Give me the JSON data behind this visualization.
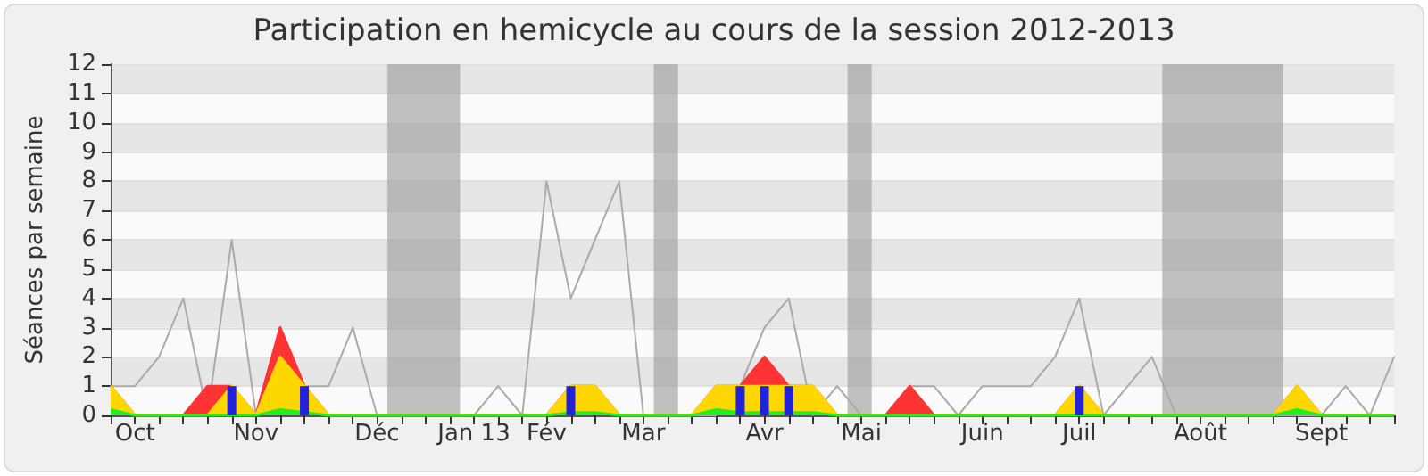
{
  "chart_data": {
    "type": "area",
    "title": "Participation en hemicycle au cours de la session 2012-2013",
    "ylabel": "Séances par semaine",
    "x": [
      "2012-10-01",
      "2012-10-08",
      "2012-10-15",
      "2012-10-22",
      "2012-10-29",
      "2012-11-05",
      "2012-11-12",
      "2012-11-19",
      "2012-11-26",
      "2012-12-03",
      "2012-12-10",
      "2012-12-17",
      "2012-12-24",
      "2012-12-31",
      "2013-01-07",
      "2013-01-14",
      "2013-01-21",
      "2013-01-28",
      "2013-02-04",
      "2013-02-11",
      "2013-02-18",
      "2013-02-25",
      "2013-03-04",
      "2013-03-11",
      "2013-03-18",
      "2013-03-25",
      "2013-04-01",
      "2013-04-08",
      "2013-04-15",
      "2013-04-22",
      "2013-04-29",
      "2013-05-06",
      "2013-05-13",
      "2013-05-20",
      "2013-05-27",
      "2013-06-03",
      "2013-06-10",
      "2013-06-17",
      "2013-06-24",
      "2013-07-01",
      "2013-07-08",
      "2013-07-15",
      "2013-07-22",
      "2013-07-29",
      "2013-08-05",
      "2013-08-12",
      "2013-08-19",
      "2013-08-26",
      "2013-09-02",
      "2013-09-09",
      "2013-09-16",
      "2013-09-23",
      "2013-09-30",
      "2013-10-07"
    ],
    "series": [
      {
        "type": "line",
        "color": "#aaaaaa",
        "values": [
          1,
          1,
          2,
          4,
          0,
          6,
          0,
          null,
          1,
          1,
          3,
          0,
          0,
          0,
          0,
          0,
          1,
          0,
          8,
          4,
          6,
          8,
          0,
          0,
          0,
          0,
          1,
          3,
          4,
          0,
          1,
          0,
          0,
          1,
          1,
          0,
          1,
          1,
          1,
          2,
          4,
          0,
          1,
          2,
          0,
          0,
          0,
          0,
          0,
          0,
          0,
          1,
          0,
          2
        ]
      },
      {
        "color": "#ff3333",
        "values": [
          1,
          0,
          0,
          0,
          1,
          1,
          0,
          3,
          1,
          0,
          0,
          0,
          0,
          0,
          0,
          0,
          0,
          0,
          0,
          1,
          1,
          0,
          0,
          0,
          0,
          1,
          1,
          2,
          1,
          1,
          0,
          0,
          0,
          1,
          0,
          0,
          0,
          0,
          0,
          0,
          1,
          0,
          0,
          0,
          0,
          0,
          0,
          0,
          0,
          1,
          0,
          0,
          0,
          0
        ]
      },
      {
        "color": "#ffd700",
        "values": [
          1,
          0,
          0,
          0,
          0,
          1,
          0,
          2,
          1,
          0,
          0,
          0,
          0,
          0,
          0,
          0,
          0,
          0,
          0,
          1,
          1,
          0,
          0,
          0,
          0,
          1,
          1,
          1,
          1,
          1,
          0,
          0,
          0,
          0,
          0,
          0,
          0,
          0,
          0,
          0,
          1,
          0,
          0,
          0,
          0,
          0,
          0,
          0,
          0,
          1,
          0,
          0,
          0,
          0
        ]
      },
      {
        "color": "#22ee22",
        "values": [
          0.2,
          0,
          0,
          0,
          0,
          0,
          0,
          0.2,
          0.1,
          0,
          0,
          0,
          0,
          0,
          0,
          0,
          0,
          0,
          0,
          0.1,
          0.1,
          0,
          0,
          0,
          0,
          0.2,
          0.1,
          0.1,
          0.1,
          0.1,
          0,
          0,
          0,
          0,
          0,
          0,
          0,
          0,
          0,
          0,
          0,
          0,
          0,
          0,
          0,
          0,
          0,
          0,
          0,
          0.2,
          0,
          0,
          0,
          0
        ]
      },
      {
        "type": "bar",
        "color": "#2222dd",
        "values": [
          null,
          null,
          null,
          null,
          null,
          1,
          null,
          null,
          1,
          null,
          null,
          null,
          null,
          null,
          null,
          null,
          null,
          null,
          null,
          1,
          null,
          null,
          null,
          null,
          null,
          null,
          1,
          1,
          1,
          null,
          null,
          null,
          null,
          null,
          null,
          null,
          null,
          null,
          null,
          null,
          1,
          null,
          null,
          null,
          null,
          null,
          null,
          null,
          null,
          null,
          null,
          null,
          null,
          null
        ]
      }
    ],
    "xlim": [
      "2012-10-01",
      "2013-10-07"
    ],
    "xticks": [
      {
        "value": "2012-10-01",
        "label": null
      },
      {
        "value": "2012-10-08",
        "label": "Oct"
      },
      {
        "value": "2012-10-15",
        "label": null
      },
      {
        "value": "2012-10-22",
        "label": null
      },
      {
        "value": "2012-10-29",
        "label": null
      },
      {
        "value": "2012-11-05",
        "label": null
      },
      {
        "value": "2012-11-12",
        "label": "Nov"
      },
      {
        "value": "2012-11-19",
        "label": null
      },
      {
        "value": "2012-11-26",
        "label": null
      },
      {
        "value": "2012-12-03",
        "label": null
      },
      {
        "value": "2012-12-10",
        "label": null
      },
      {
        "value": "2012-12-17",
        "label": "Déc"
      },
      {
        "value": "2012-12-24",
        "label": null
      },
      {
        "value": "2012-12-31",
        "label": null
      },
      {
        "value": "2013-01-07",
        "label": null
      },
      {
        "value": "2013-01-14",
        "label": "Jan 13"
      },
      {
        "value": "2013-01-21",
        "label": null
      },
      {
        "value": "2013-01-28",
        "label": null
      },
      {
        "value": "2013-02-04",
        "label": "Fév"
      },
      {
        "value": "2013-02-11",
        "label": null
      },
      {
        "value": "2013-02-18",
        "label": null
      },
      {
        "value": "2013-02-25",
        "label": null
      },
      {
        "value": "2013-03-04",
        "label": "Mar"
      },
      {
        "value": "2013-03-11",
        "label": null
      },
      {
        "value": "2013-03-18",
        "label": null
      },
      {
        "value": "2013-03-25",
        "label": null
      },
      {
        "value": "2013-04-01",
        "label": null
      },
      {
        "value": "2013-04-08",
        "label": "Avr"
      },
      {
        "value": "2013-04-15",
        "label": null
      },
      {
        "value": "2013-04-22",
        "label": null
      },
      {
        "value": "2013-04-29",
        "label": null
      },
      {
        "value": "2013-05-06",
        "label": "Mai"
      },
      {
        "value": "2013-05-13",
        "label": null
      },
      {
        "value": "2013-05-20",
        "label": null
      },
      {
        "value": "2013-05-27",
        "label": null
      },
      {
        "value": "2013-06-03",
        "label": null
      },
      {
        "value": "2013-06-10",
        "label": "Juin"
      },
      {
        "value": "2013-06-17",
        "label": null
      },
      {
        "value": "2013-06-24",
        "label": null
      },
      {
        "value": "2013-07-01",
        "label": null
      },
      {
        "value": "2013-07-08",
        "label": "Juil"
      },
      {
        "value": "2013-07-15",
        "label": null
      },
      {
        "value": "2013-07-22",
        "label": null
      },
      {
        "value": "2013-07-29",
        "label": null
      },
      {
        "value": "2013-08-05",
        "label": null
      },
      {
        "value": "2013-08-12",
        "label": "Août"
      },
      {
        "value": "2013-08-19",
        "label": null
      },
      {
        "value": "2013-08-26",
        "label": null
      },
      {
        "value": "2013-09-02",
        "label": null
      },
      {
        "value": "2013-09-09",
        "label": null
      },
      {
        "value": "2013-09-16",
        "label": "Sept"
      },
      {
        "value": "2013-09-23",
        "label": null
      },
      {
        "value": "2013-09-30",
        "label": null
      },
      {
        "value": "2013-10-07",
        "label": null
      }
    ],
    "ylim": [
      0,
      12
    ],
    "yticks": [
      0,
      1,
      2,
      3,
      4,
      5,
      6,
      7,
      8,
      9,
      10,
      11,
      12
    ],
    "bands": [
      {
        "axis": "x",
        "from": "2012-12-20",
        "to": "2013-01-10",
        "color": "#999999"
      },
      {
        "axis": "x",
        "from": "2013-03-07",
        "to": "2013-03-14",
        "color": "#999999"
      },
      {
        "axis": "x",
        "from": "2013-05-02",
        "to": "2013-05-09",
        "color": "#999999"
      },
      {
        "axis": "x",
        "from": "2013-08-01",
        "to": "2013-09-05",
        "color": "#999999"
      }
    ],
    "grid": "y",
    "marker": "none"
  }
}
